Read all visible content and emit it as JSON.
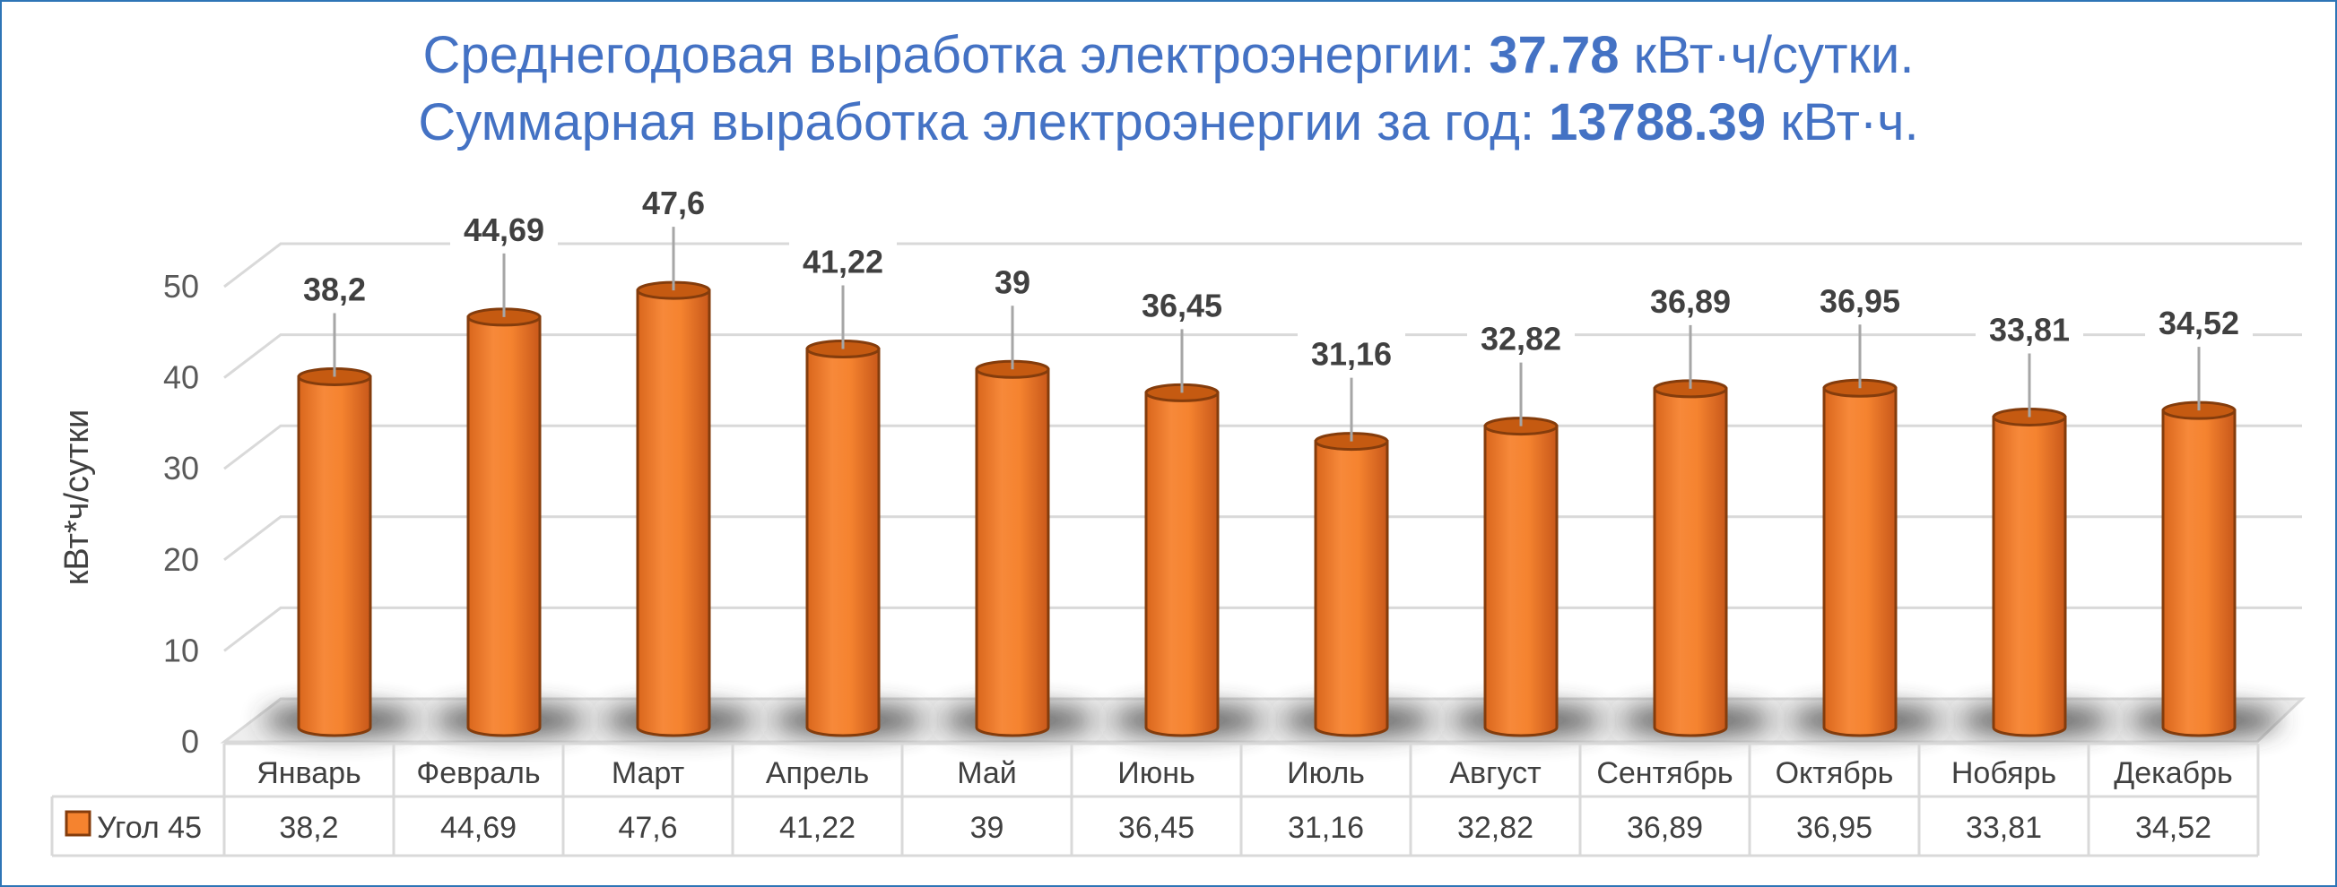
{
  "header": {
    "line1_prefix": "Среднегодовая выработка электроэнергии: ",
    "line1_value": "37.78",
    "line1_suffix": " кВт·ч/сутки.",
    "line2_prefix": "Суммарная выработка электроэнергии за год: ",
    "line2_value": "13788.39",
    "line2_suffix": " кВт·ч."
  },
  "chart_data": {
    "type": "bar",
    "style": "3d-cylinder",
    "categories": [
      "Январь",
      "Февраль",
      "Март",
      "Апрель",
      "Май",
      "Июнь",
      "Июль",
      "Август",
      "Сентябрь",
      "Октябрь",
      "Нобярь",
      "Декабрь"
    ],
    "series": [
      {
        "name": "Угол 45",
        "values": [
          38.2,
          44.69,
          47.6,
          41.22,
          39,
          36.45,
          31.16,
          32.82,
          36.89,
          36.95,
          33.81,
          34.52
        ]
      }
    ],
    "value_labels": [
      "38,2",
      "44,69",
      "47,6",
      "41,22",
      "39",
      "36,45",
      "31,16",
      "32,82",
      "36,89",
      "36,95",
      "33,81",
      "34,52"
    ],
    "ylabel": "кВт*ч/сутки",
    "xlabel": "",
    "ylim": [
      0,
      50
    ],
    "yticks": [
      "0",
      "10",
      "20",
      "30",
      "40",
      "50"
    ],
    "grid": true,
    "legend": "data-table",
    "colors": {
      "bar": "#f5832f",
      "bar_top": "#c55a11",
      "bar_edge": "#843c0c",
      "title": "#4472c4"
    }
  }
}
